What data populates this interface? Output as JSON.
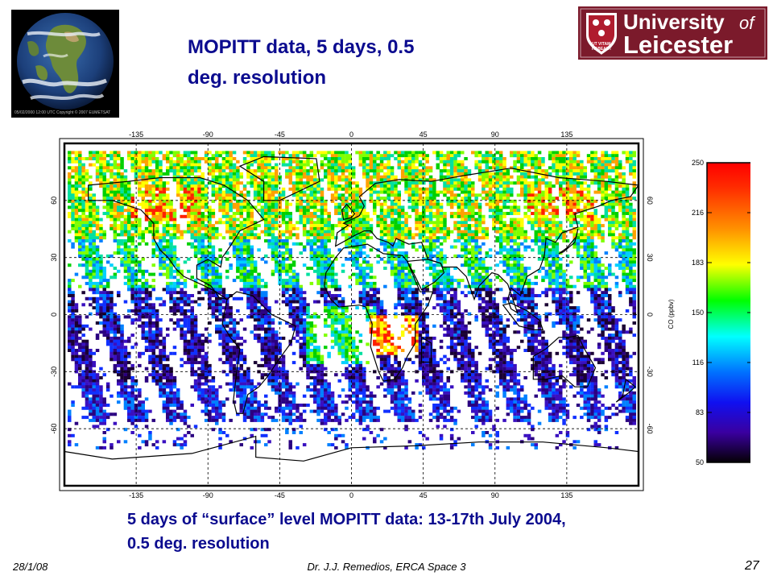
{
  "slide": {
    "title_line1": "MOPITT data, 5 days, 0.5",
    "title_line2": "deg. resolution",
    "caption_line1": "5 days of “surface” level  MOPITT data: 13-17th July 2004,",
    "caption_line2": "0.5 deg. resolution",
    "footer_date": "28/1/08",
    "footer_author": "Dr. J.J. Remedios, ERCA Space 3",
    "page_number": "27"
  },
  "earth_image": {
    "caption": "05/02/2000 12:00 UTC Copyright © 2007 EUMETSAT"
  },
  "logo": {
    "line1_a": "University",
    "line1_b": "of",
    "line2": "Leicester",
    "motto_line1": "UT VITAM",
    "motto_line2": "HABEANT",
    "color_bg": "#7b1a2b",
    "color_text": "#ffffff"
  },
  "map": {
    "lon_ticks": [
      "-135",
      "-90",
      "-45",
      "0",
      "45",
      "90",
      "135"
    ],
    "lat_ticks_left": [
      "60",
      "30",
      "0",
      "-30",
      "-60"
    ],
    "lat_ticks_right": [
      "60",
      "30",
      "0",
      "-30",
      "-60"
    ]
  },
  "colorbar": {
    "label": "CO (ppbv)",
    "ticks": [
      "250",
      "216",
      "183",
      "150",
      "116",
      "83",
      "50"
    ],
    "stops": [
      "#ff0000",
      "#ff8000",
      "#ffff00",
      "#00ff00",
      "#00ffff",
      "#0040ff",
      "#3000c0",
      "#000000"
    ]
  }
}
